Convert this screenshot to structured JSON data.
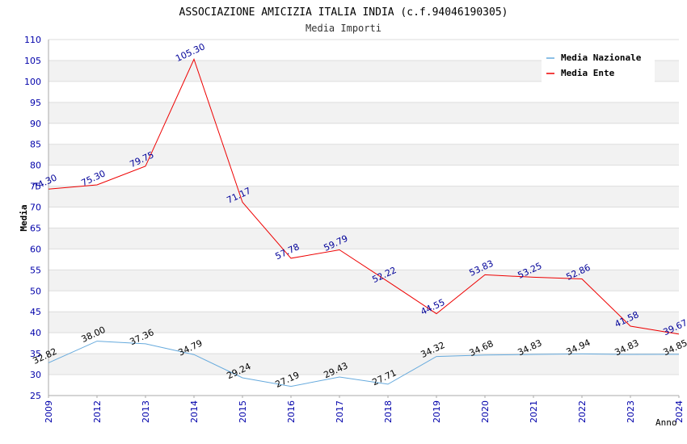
{
  "chart_data": {
    "type": "line",
    "title": "ASSOCIAZIONE AMICIZIA ITALIA INDIA (c.f.94046190305)",
    "subtitle": "Media Importi",
    "xlabel": "Anno",
    "ylabel": "Media",
    "ylim": [
      25,
      110
    ],
    "y_ticks": [
      25,
      30,
      35,
      40,
      45,
      50,
      55,
      60,
      65,
      70,
      75,
      80,
      85,
      90,
      95,
      100,
      105,
      110
    ],
    "categories": [
      "2009",
      "2012",
      "2013",
      "2014",
      "2015",
      "2016",
      "2017",
      "2018",
      "2019",
      "2020",
      "2021",
      "2022",
      "2023",
      "2024"
    ],
    "legend_position": "top-right",
    "series": [
      {
        "name": "Media Nazionale",
        "color": "#66aadd",
        "label_color": "#000000",
        "values": [
          32.82,
          38.0,
          37.36,
          34.79,
          29.24,
          27.19,
          29.43,
          27.71,
          34.32,
          34.68,
          34.83,
          34.94,
          34.83,
          34.85
        ],
        "labels": [
          "32.82",
          "38.00",
          "37.36",
          "34.79",
          "29.24",
          "27.19",
          "29.43",
          "27.71",
          "34.32",
          "34.68",
          "34.83",
          "34.94",
          "34.83",
          "34.85"
        ]
      },
      {
        "name": "Media Ente",
        "color": "#ee0000",
        "label_color": "#000099",
        "values": [
          74.3,
          75.3,
          79.75,
          105.3,
          71.17,
          57.78,
          59.79,
          52.22,
          44.55,
          53.83,
          53.25,
          52.86,
          41.58,
          39.67
        ],
        "labels": [
          "74.30",
          "75.30",
          "79.75",
          "105.30",
          "71.17",
          "57.78",
          "59.79",
          "52.22",
          "44.55",
          "53.83",
          "53.25",
          "52.86",
          "41.58",
          "39.67"
        ]
      }
    ]
  },
  "colors": {
    "band_fill": "#f2f2f2",
    "grid": "#dddddd",
    "axis": "#aaaaaa",
    "tick_text": "#0000aa",
    "title_text": "#000000",
    "subtitle_text": "#333333"
  }
}
